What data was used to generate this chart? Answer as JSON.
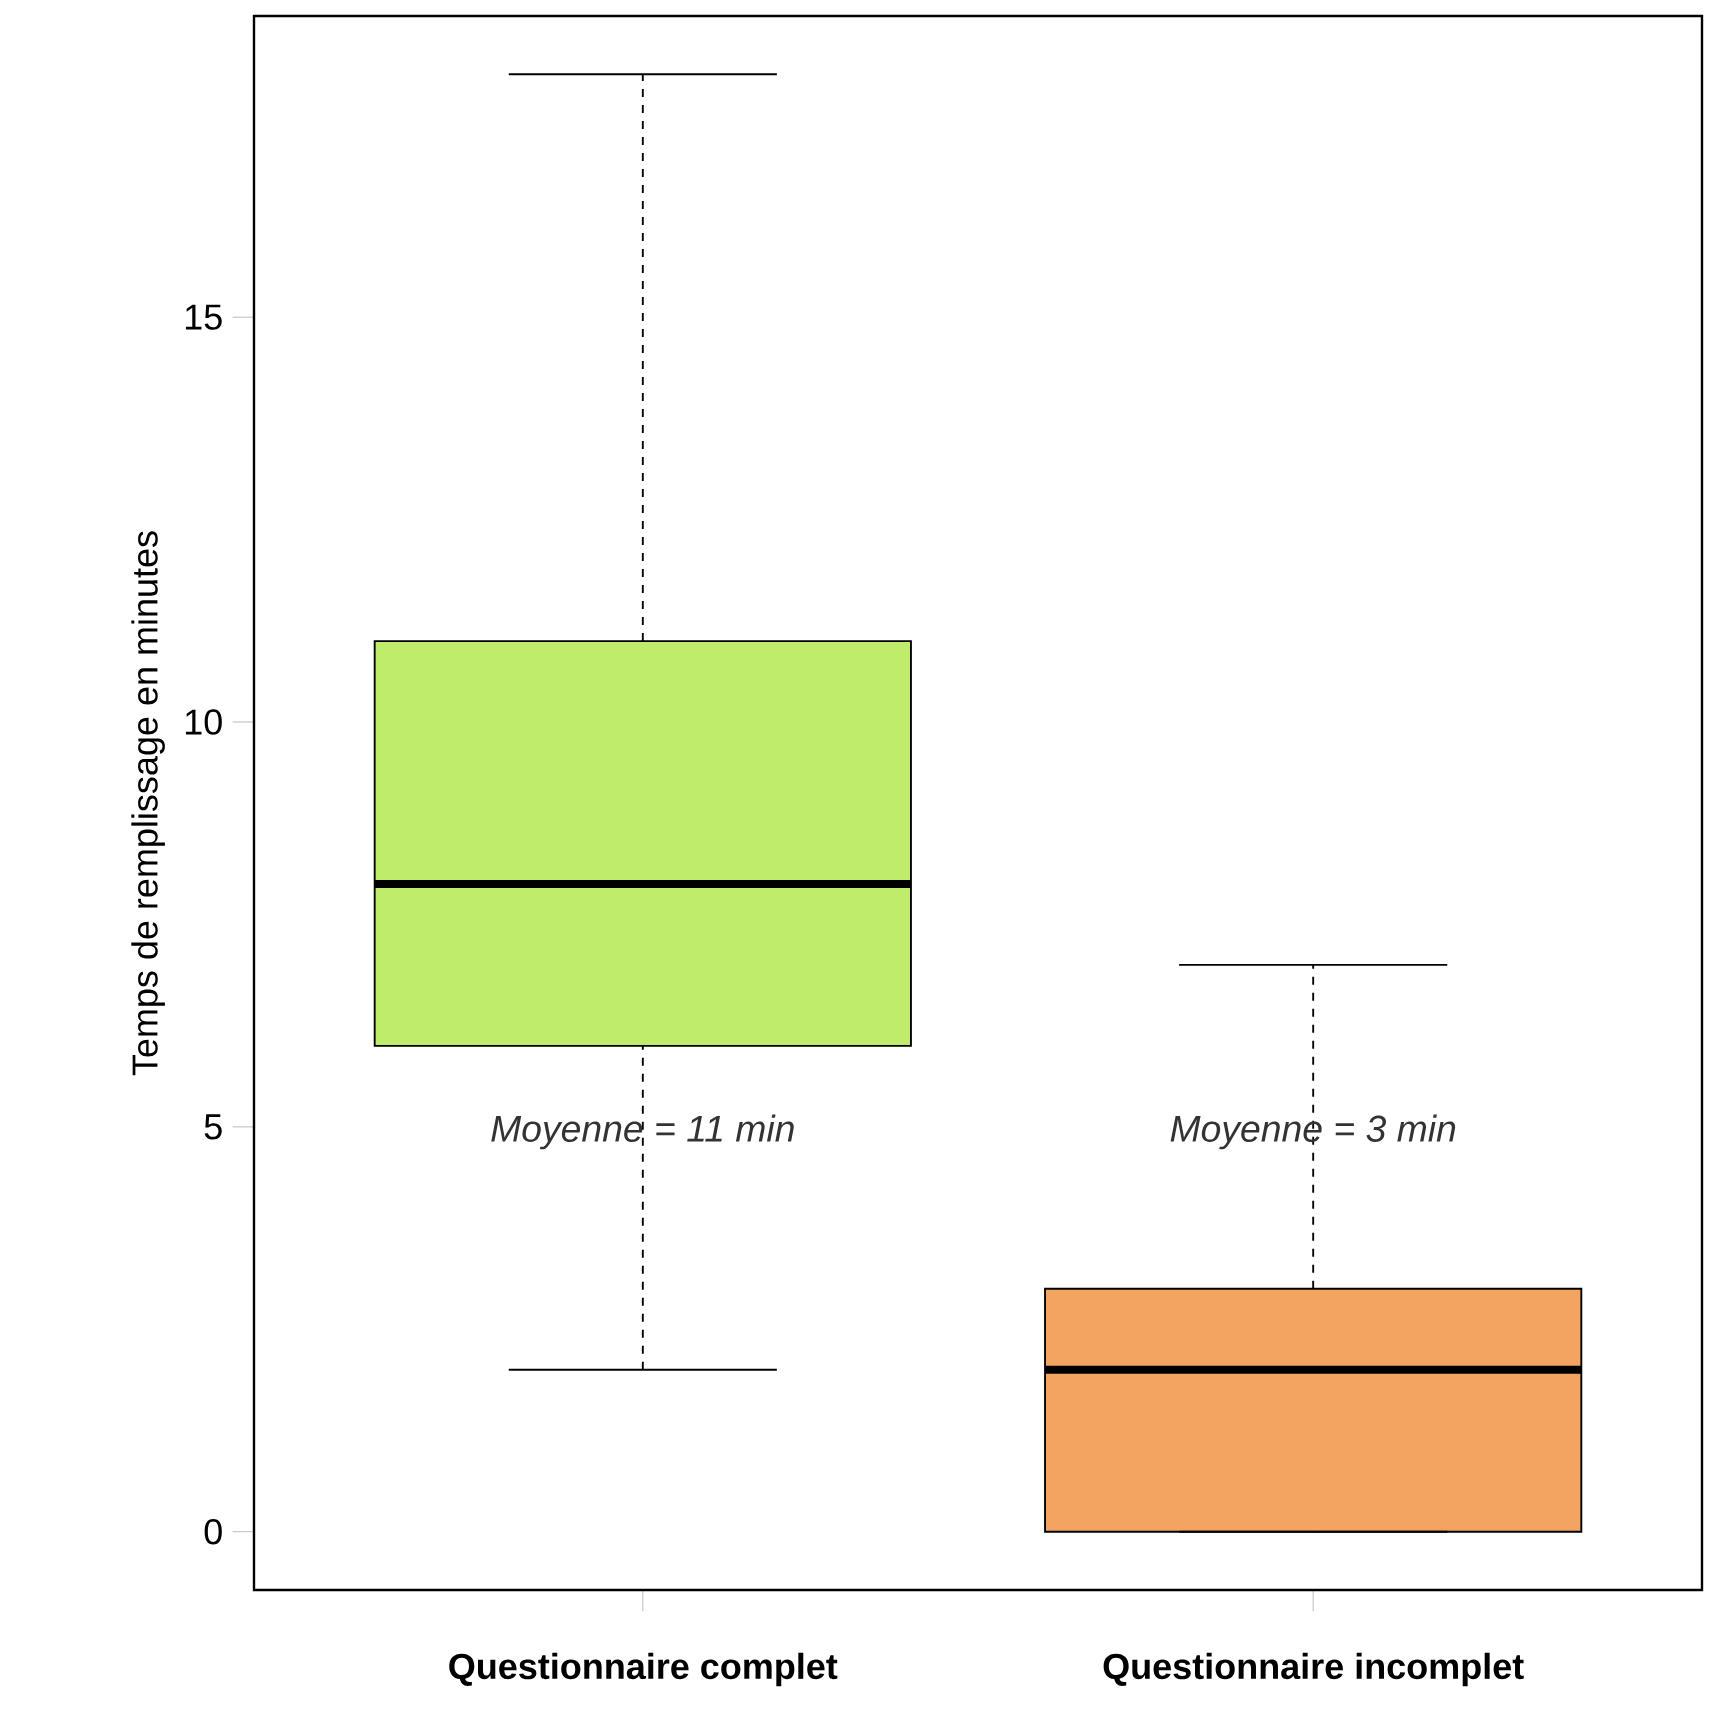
{
  "chart_data": {
    "type": "box",
    "ylabel": "Temps de remplissage en minutes",
    "categories": [
      "**Questionnaire complet**",
      "**Questionnaire incomplet**"
    ],
    "colors": [
      "#bfec6a",
      "#f3a461"
    ],
    "boxes": [
      {
        "low": 2,
        "q1": 6,
        "median": 8,
        "q3": 11,
        "high": 18
      },
      {
        "low": 0,
        "q1": 0,
        "median": 2,
        "q3": 3,
        "high": 7
      }
    ],
    "annotations": [
      "*Moyenne = 11 min*",
      "*Moyenne = 3 min*"
    ],
    "ylim": [
      -0.72,
      18.72
    ],
    "yticks": [
      0,
      5,
      10,
      15
    ],
    "grid": false
  }
}
